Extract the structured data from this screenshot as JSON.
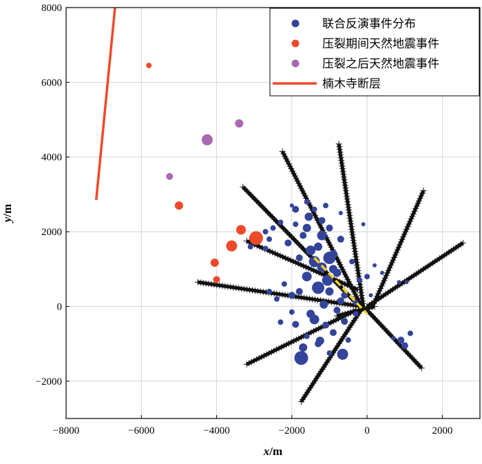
{
  "chart_data": {
    "type": "scatter",
    "xlabel": "x",
    "ylabel": "y",
    "unit": "m",
    "xlim": [
      -8000,
      3000
    ],
    "ylim": [
      -3000,
      8000
    ],
    "xticks": [
      -8000,
      -6000,
      -4000,
      -2000,
      0,
      2000
    ],
    "yticks": [
      -2000,
      0,
      2000,
      4000,
      6000,
      8000
    ],
    "xtick_labels": [
      "−8000",
      "−6000",
      "−4000",
      "−2000",
      "0",
      "2000"
    ],
    "ytick_labels": [
      "−2000",
      "0",
      "2000",
      "4000",
      "6000",
      "8000"
    ],
    "grid": true,
    "legend_position": "top-right",
    "colors": {
      "joint_events": "#34449a",
      "during_frac": "#ee4a2a",
      "after_frac": "#a869b0",
      "fault": "#ee4a2a",
      "stations": "#111111",
      "well": "#f3d21f"
    },
    "legend": [
      {
        "label": "联合反演事件分布",
        "marker": "dot",
        "color": "#34449a"
      },
      {
        "label": "压裂期间天然地震事件",
        "marker": "dot",
        "color": "#ee4a2a"
      },
      {
        "label": "压裂之后天然地震事件",
        "marker": "dot",
        "color": "#a869b0"
      },
      {
        "label": "楠木寺断层",
        "marker": "line",
        "color": "#ee4a2a"
      }
    ],
    "series": [
      {
        "name": "楠木寺断层",
        "kind": "line",
        "points": [
          [
            -7200,
            2850
          ],
          [
            -6700,
            8000
          ]
        ]
      },
      {
        "name": "压裂期间天然地震事件",
        "kind": "scatter",
        "points": [
          {
            "x": -5800,
            "y": 6450,
            "size": 4
          },
          {
            "x": -5000,
            "y": 2700,
            "size": 6
          },
          {
            "x": -3350,
            "y": 2050,
            "size": 7
          },
          {
            "x": -2950,
            "y": 1830,
            "size": 10
          },
          {
            "x": -3600,
            "y": 1620,
            "size": 8
          },
          {
            "x": -4050,
            "y": 1170,
            "size": 6
          },
          {
            "x": -4000,
            "y": 720,
            "size": 5
          }
        ]
      },
      {
        "name": "压裂之后天然地震事件",
        "kind": "scatter",
        "points": [
          {
            "x": -3400,
            "y": 4900,
            "size": 6
          },
          {
            "x": -4250,
            "y": 4460,
            "size": 8
          },
          {
            "x": -5250,
            "y": 3480,
            "size": 5
          }
        ]
      },
      {
        "name": "联合反演事件分布",
        "kind": "scatter",
        "points": [
          {
            "x": -1750,
            "y": -1380,
            "size": 10
          },
          {
            "x": -650,
            "y": -1280,
            "size": 8
          },
          {
            "x": -1250,
            "y": -920,
            "size": 6
          },
          {
            "x": -900,
            "y": -700,
            "size": 5
          },
          {
            "x": -1900,
            "y": -480,
            "size": 5
          },
          {
            "x": -1600,
            "y": -800,
            "size": 4
          },
          {
            "x": -2300,
            "y": -420,
            "size": 4
          },
          {
            "x": -1400,
            "y": -350,
            "size": 7
          },
          {
            "x": -1150,
            "y": 50,
            "size": 6
          },
          {
            "x": -700,
            "y": 150,
            "size": 5
          },
          {
            "x": -1050,
            "y": 700,
            "size": 8
          },
          {
            "x": -1200,
            "y": 1050,
            "size": 7
          },
          {
            "x": -900,
            "y": 1400,
            "size": 6
          },
          {
            "x": -1300,
            "y": 1600,
            "size": 6
          },
          {
            "x": -1700,
            "y": 1900,
            "size": 5
          },
          {
            "x": -1550,
            "y": 2400,
            "size": 6
          },
          {
            "x": -1900,
            "y": 2600,
            "size": 5
          },
          {
            "x": -2300,
            "y": 2250,
            "size": 4
          },
          {
            "x": -2600,
            "y": 1800,
            "size": 4
          },
          {
            "x": -2700,
            "y": 1550,
            "size": 4
          },
          {
            "x": -3100,
            "y": 1600,
            "size": 4
          },
          {
            "x": -1000,
            "y": 400,
            "size": 6
          },
          {
            "x": -600,
            "y": 300,
            "size": 5
          },
          {
            "x": -300,
            "y": 100,
            "size": 4
          },
          {
            "x": 100,
            "y": 300,
            "size": 3
          },
          {
            "x": 400,
            "y": 900,
            "size": 3
          },
          {
            "x": -100,
            "y": 2200,
            "size": 3
          },
          {
            "x": -700,
            "y": 2500,
            "size": 3
          },
          {
            "x": -1000,
            "y": 2100,
            "size": 5
          },
          {
            "x": -1400,
            "y": 1200,
            "size": 8
          },
          {
            "x": -1600,
            "y": 800,
            "size": 7
          },
          {
            "x": -1800,
            "y": 400,
            "size": 5
          },
          {
            "x": -2000,
            "y": 300,
            "size": 5
          },
          {
            "x": -2200,
            "y": 600,
            "size": 4
          },
          {
            "x": -2400,
            "y": 200,
            "size": 4
          },
          {
            "x": -2600,
            "y": 400,
            "size": 4
          },
          {
            "x": -800,
            "y": 900,
            "size": 6
          },
          {
            "x": -700,
            "y": 1800,
            "size": 5
          },
          {
            "x": -1100,
            "y": 2700,
            "size": 4
          },
          {
            "x": -400,
            "y": 1200,
            "size": 4
          },
          {
            "x": -200,
            "y": 700,
            "size": 4
          },
          {
            "x": -1700,
            "y": -1100,
            "size": 6
          },
          {
            "x": -1300,
            "y": -1000,
            "size": 5
          },
          {
            "x": -500,
            "y": -900,
            "size": 4
          },
          {
            "x": -1000,
            "y": -1250,
            "size": 4
          },
          {
            "x": 900,
            "y": -900,
            "size": 5
          },
          {
            "x": 1000,
            "y": -1050,
            "size": 5
          },
          {
            "x": 1150,
            "y": -720,
            "size": 4
          },
          {
            "x": 700,
            "y": -850,
            "size": 3
          },
          {
            "x": 1050,
            "y": 650,
            "size": 3
          },
          {
            "x": 850,
            "y": 650,
            "size": 3
          },
          {
            "x": -1500,
            "y": 1500,
            "size": 7
          },
          {
            "x": -1200,
            "y": 1900,
            "size": 7
          },
          {
            "x": -900,
            "y": 1000,
            "size": 6
          },
          {
            "x": -1800,
            "y": 1300,
            "size": 5
          },
          {
            "x": -2100,
            "y": 1700,
            "size": 5
          },
          {
            "x": -1500,
            "y": -200,
            "size": 6
          },
          {
            "x": -1100,
            "y": -500,
            "size": 5
          },
          {
            "x": -800,
            "y": -100,
            "size": 5
          },
          {
            "x": -2000,
            "y": -150,
            "size": 4
          },
          {
            "x": -1000,
            "y": 1300,
            "size": 9
          },
          {
            "x": -1300,
            "y": 500,
            "size": 9
          },
          {
            "x": -1600,
            "y": 2100,
            "size": 6
          },
          {
            "x": -1900,
            "y": 2200,
            "size": 4
          },
          {
            "x": -2500,
            "y": 2100,
            "size": 4
          },
          {
            "x": -2700,
            "y": 2000,
            "size": 4
          },
          {
            "x": -600,
            "y": -400,
            "size": 5
          },
          {
            "x": -300,
            "y": -200,
            "size": 4
          },
          {
            "x": 0,
            "y": 800,
            "size": 4
          },
          {
            "x": 200,
            "y": 1100,
            "size": 3
          },
          {
            "x": -1200,
            "y": 2300,
            "size": 5
          },
          {
            "x": -1400,
            "y": 2600,
            "size": 4
          },
          {
            "x": -1600,
            "y": 2800,
            "size": 4
          },
          {
            "x": -2000,
            "y": 2700,
            "size": 3
          }
        ]
      },
      {
        "name": "stations",
        "kind": "lines",
        "segments": [
          [
            [
              -2250,
              4150
            ],
            [
              -150,
              0
            ]
          ],
          [
            [
              -750,
              4350
            ],
            [
              -100,
              0
            ]
          ],
          [
            [
              1500,
              3100
            ],
            [
              150,
              0
            ]
          ],
          [
            [
              2550,
              1700
            ],
            [
              0,
              0
            ]
          ],
          [
            [
              -3300,
              3200
            ],
            [
              -300,
              100
            ]
          ],
          [
            [
              -4500,
              650
            ],
            [
              -150,
              0
            ]
          ],
          [
            [
              -3200,
              1750
            ],
            [
              -250,
              450
            ]
          ],
          [
            [
              1450,
              -1650
            ],
            [
              0,
              -100
            ]
          ],
          [
            [
              -1750,
              -2550
            ],
            [
              -100,
              0
            ]
          ],
          [
            [
              -3200,
              -1550
            ],
            [
              -300,
              -100
            ]
          ],
          [
            [
              -800,
              -250
            ],
            [
              200,
              0
            ]
          ]
        ]
      },
      {
        "name": "well",
        "kind": "line",
        "points": [
          [
            -1400,
            1300
          ],
          [
            0,
            -200
          ]
        ]
      }
    ]
  }
}
